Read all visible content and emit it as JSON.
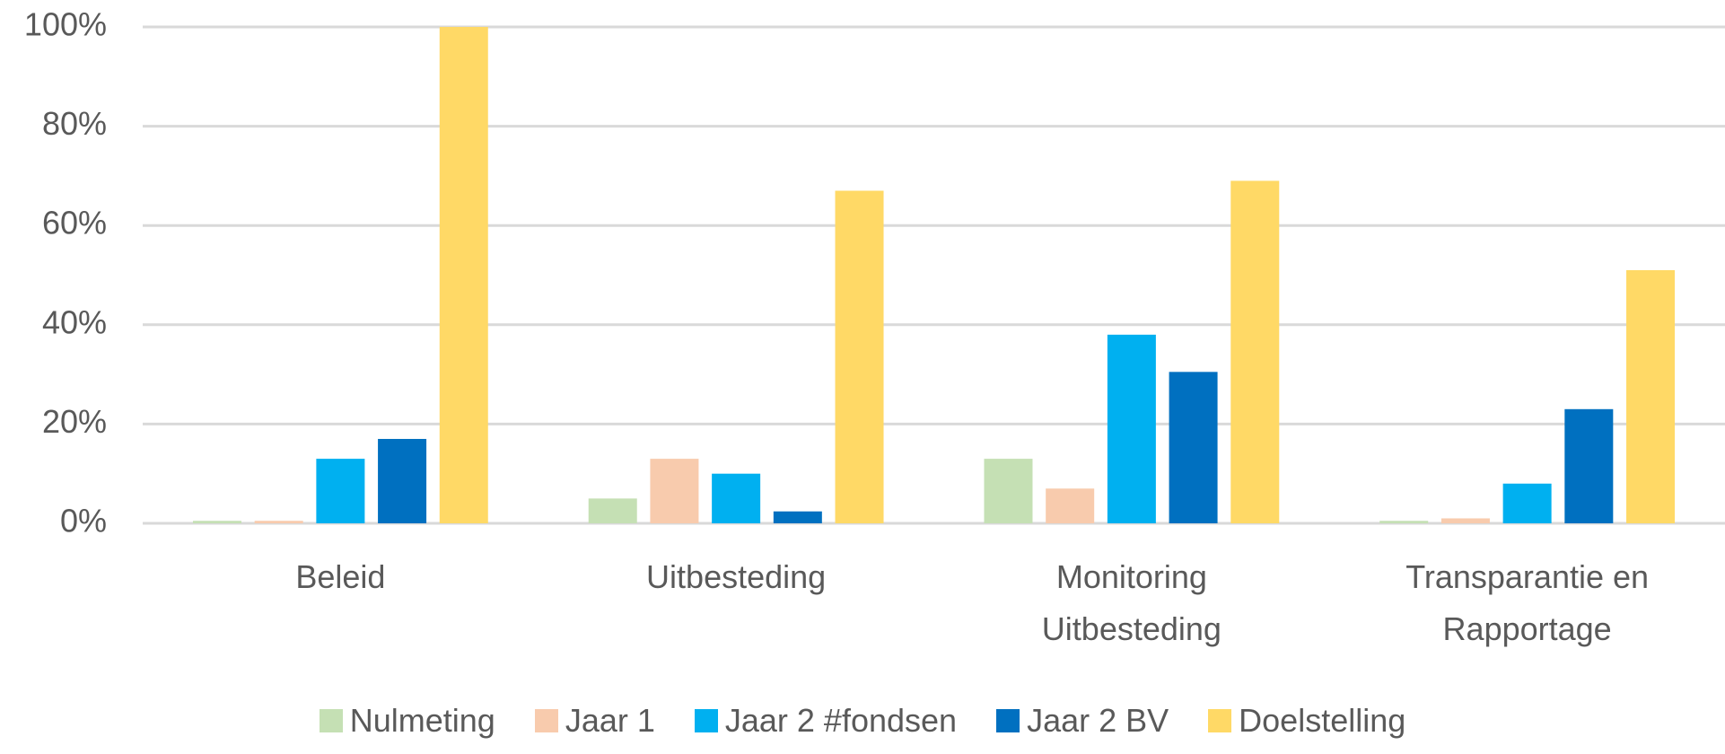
{
  "chart_data": {
    "type": "bar",
    "categories": [
      "Beleid",
      "Uitbesteding",
      "Monitoring Uitbesteding",
      "Transparantie en Rapportage"
    ],
    "series": [
      {
        "name": "Nulmeting",
        "color": "#c5e0b4",
        "values": [
          0.5,
          5,
          13,
          0.5
        ]
      },
      {
        "name": "Jaar 1",
        "color": "#f8cbad",
        "values": [
          0.5,
          13,
          7,
          1
        ]
      },
      {
        "name": "Jaar 2 #fondsen",
        "color": "#00b0f0",
        "values": [
          13,
          10,
          38,
          8
        ]
      },
      {
        "name": "Jaar 2 BV",
        "color": "#0070c0",
        "values": [
          17,
          2.4,
          30.5,
          23
        ]
      },
      {
        "name": "Doelstelling",
        "color": "#ffd966",
        "values": [
          100,
          67,
          69,
          51
        ]
      }
    ],
    "ylim": [
      0,
      100
    ],
    "yticks": [
      {
        "value": 0,
        "label": "0%"
      },
      {
        "value": 20,
        "label": "20%"
      },
      {
        "value": 40,
        "label": "40%"
      },
      {
        "value": 60,
        "label": "60%"
      },
      {
        "value": 80,
        "label": "80%"
      },
      {
        "value": 100,
        "label": "100%"
      }
    ],
    "grid": true,
    "legend": "bottom"
  }
}
